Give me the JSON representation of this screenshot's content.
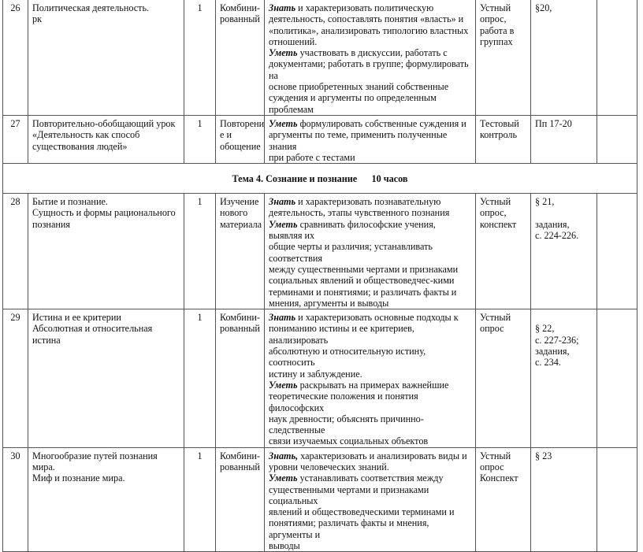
{
  "rows_before": [
    {
      "num": "26",
      "topic": "Политическая деятельность.\nрк",
      "hours": "1",
      "type": "Комбини-\nрованный",
      "content": [
        {
          "k": "Знать",
          "t": " и характеризовать политическую\nдеятельность, сопоставлять понятия «власть» и\n«политика», анализировать типологию властных\nотношений.\n"
        },
        {
          "k": "Уметь",
          "t": " участвовать в дискуссии, работать с\nдокументами; работать в группе; формулировать на\nоснове приобретенных знаний собственные\nсуждения и аргументы по определенным проблемам"
        }
      ],
      "control": "Устный\nопрос,\nработа в\nгруппах",
      "homework": "§20,",
      "extra": ""
    },
    {
      "num": "27",
      "topic": "Повторительно-обобщающий урок\n«Деятельность как способ\nсуществования людей»",
      "hours": "1",
      "type": "Повторени\nе и\nобощение",
      "content": [
        {
          "k": "Уметь",
          "t": " формулировать собственные суждения и\nаргументы по теме, применить полученные знания\nпри работе с тестами"
        }
      ],
      "control": "Тестовый\nконтроль",
      "homework": "Пп 17-20",
      "extra": ""
    }
  ],
  "theme": "Тема 4. Сознание и познание      10 часов",
  "rows_after": [
    {
      "num": "28",
      "topic": "Бытие и познание.\nСущность и формы рационального\nпознания",
      "hours": "1",
      "type": "Изучение\nнового\nматериала",
      "content": [
        {
          "k": "Знать",
          "t": " и характеризовать познавательную\nдеятельность, этапы чувственного познания\n"
        },
        {
          "k": "Уметь",
          "t": " сравнивать философские учения, выявляя их\nобщие черты и различия; устанавливать соответствия\nмежду существенными чертами и признаками\nсоциальных явлений и обществоведчес-кими\nтерминами и понятиями; и различать факты и\nмнения, аргументы и выводы"
        }
      ],
      "control": "Устный\nопрос,\nконспект",
      "homework": "§ 21,\n\nзадания,\nс. 224-226.",
      "extra": ""
    },
    {
      "num": "29",
      "topic": "Истина и ее критерии\nАбсолютная и относительная истина",
      "hours": "1",
      "type": "Комбини-\nрованный",
      "content": [
        {
          "k": "Знать",
          "t": " и характеризовать основные подходы к\nпониманию истины и ее критериев, анализировать\nабсолютную и относительную истину, соотносить\nистину и заблуждение.\n"
        },
        {
          "k": "Уметь",
          "t": " раскрывать на примерах важнейшие\nтеоретические положения и понятия философских\nнаук древности; объяснять причинно-следственные\nсвязи изучаемых социальных объектов"
        }
      ],
      "control": "Устный\nопрос",
      "homework": "\n§ 22,\n с. 227-236;\nзадания,\nс. 234.",
      "extra": ""
    },
    {
      "num": "30",
      "topic": "Многообразие путей познания мира.\nМиф и познание мира.",
      "hours": "1",
      "type": "Комбини-\nрованный",
      "content": [
        {
          "k": "Знать,",
          "t": " характеризовать и анализировать виды и\nуровни человеческих знаний.\n"
        },
        {
          "k": "Уметь",
          "t": " устанавливать соответствия между\nсущественными чертами и признаками социальных\nявлений и обществоведческими терминами и\nпонятиями; различать факты и мнения, аргументы и\nвыводы"
        }
      ],
      "control": "Устный\nопрос\nКонспект",
      "homework": "§ 23",
      "extra": ""
    }
  ]
}
